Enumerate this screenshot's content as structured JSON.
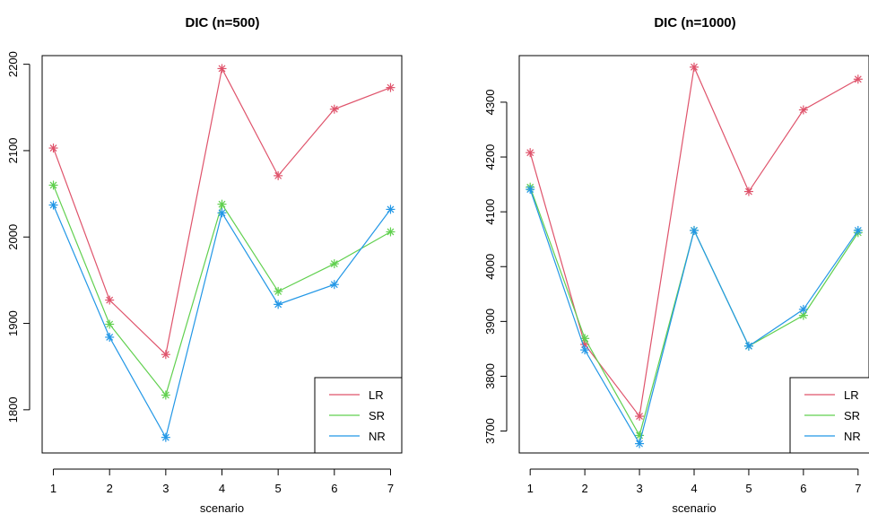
{
  "chart_data": [
    {
      "type": "line",
      "title": "DIC (n=500)",
      "xlabel": "scenario",
      "ylabel": "",
      "x": [
        1,
        2,
        3,
        4,
        5,
        6,
        7
      ],
      "xticks": [
        "1",
        "2",
        "3",
        "4",
        "5",
        "6",
        "7"
      ],
      "yticks": [
        1800,
        1900,
        2000,
        2100,
        2200
      ],
      "ylim": [
        1750,
        2210
      ],
      "xlim": [
        0.8,
        7.2
      ],
      "legend_position": "bottom-right",
      "marker": "asterisk",
      "series": [
        {
          "name": "LR",
          "color": "#DF536B",
          "values": [
            2103,
            1927,
            1864,
            2195,
            2071,
            2148,
            2173
          ]
        },
        {
          "name": "SR",
          "color": "#61D04F",
          "values": [
            2060,
            1899,
            1817,
            2038,
            1937,
            1969,
            2006
          ]
        },
        {
          "name": "NR",
          "color": "#2297E6",
          "values": [
            2037,
            1884,
            1768,
            2028,
            1922,
            1945,
            2032
          ]
        }
      ]
    },
    {
      "type": "line",
      "title": "DIC (n=1000)",
      "xlabel": "scenario",
      "ylabel": "",
      "x": [
        1,
        2,
        3,
        4,
        5,
        6,
        7
      ],
      "xticks": [
        "1",
        "2",
        "3",
        "4",
        "5",
        "6",
        "7"
      ],
      "yticks": [
        3700,
        3800,
        3900,
        4000,
        4100,
        4200,
        4300
      ],
      "ylim": [
        3660,
        4385
      ],
      "xlim": [
        0.8,
        7.2
      ],
      "legend_position": "bottom-right",
      "marker": "asterisk",
      "series": [
        {
          "name": "LR",
          "color": "#DF536B",
          "values": [
            4208,
            3858,
            3727,
            4364,
            4137,
            4286,
            4342
          ]
        },
        {
          "name": "SR",
          "color": "#61D04F",
          "values": [
            4145,
            3869,
            3692,
            4066,
            3855,
            3911,
            4062
          ]
        },
        {
          "name": "NR",
          "color": "#2297E6",
          "values": [
            4141,
            3848,
            3677,
            4066,
            3855,
            3922,
            4066
          ]
        }
      ]
    }
  ]
}
